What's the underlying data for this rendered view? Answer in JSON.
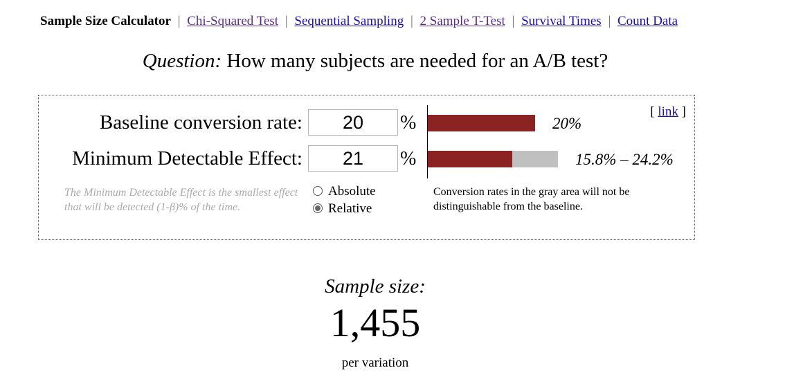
{
  "nav": {
    "title": "Sample Size Calculator",
    "separator": "|",
    "links": [
      "Chi-Squared Test",
      "Sequential Sampling",
      "2 Sample T-Test",
      "Survival Times",
      "Count Data"
    ]
  },
  "question": {
    "label": "Question:",
    "text": "How many subjects are needed for an A/B test?"
  },
  "form": {
    "baseline_label": "Baseline conversion rate:",
    "baseline_value": "20",
    "baseline_unit": "%",
    "baseline_bar_text": "20%",
    "mde_label": "Minimum Detectable Effect:",
    "mde_value": "21",
    "mde_unit": "%",
    "mde_bar_text": "15.8% – 24.2%",
    "link_open": "[",
    "link_text": "link",
    "link_close": "]",
    "mde_hint": "The Minimum Detectable Effect is the smallest effect that will be detected (1-β)% of the time.",
    "options": [
      {
        "label": "Absolute",
        "checked": false
      },
      {
        "label": "Relative",
        "checked": true
      }
    ],
    "gray_area_note": "Conversion rates in the gray area will not be distinguishable from the baseline."
  },
  "bars": {
    "baseline_fraction": 0.2,
    "interval_low_fraction": 0.158,
    "interval_high_fraction": 0.242
  },
  "colors": {
    "bar_fill": "#8b2323",
    "bar_gray": "#c0c0c0",
    "link": "#1a0dab",
    "visited_link": "#5a2d8a",
    "hint_text": "#aaaaaa"
  },
  "result": {
    "label": "Sample size:",
    "value": "1,455",
    "unit": "per variation"
  }
}
